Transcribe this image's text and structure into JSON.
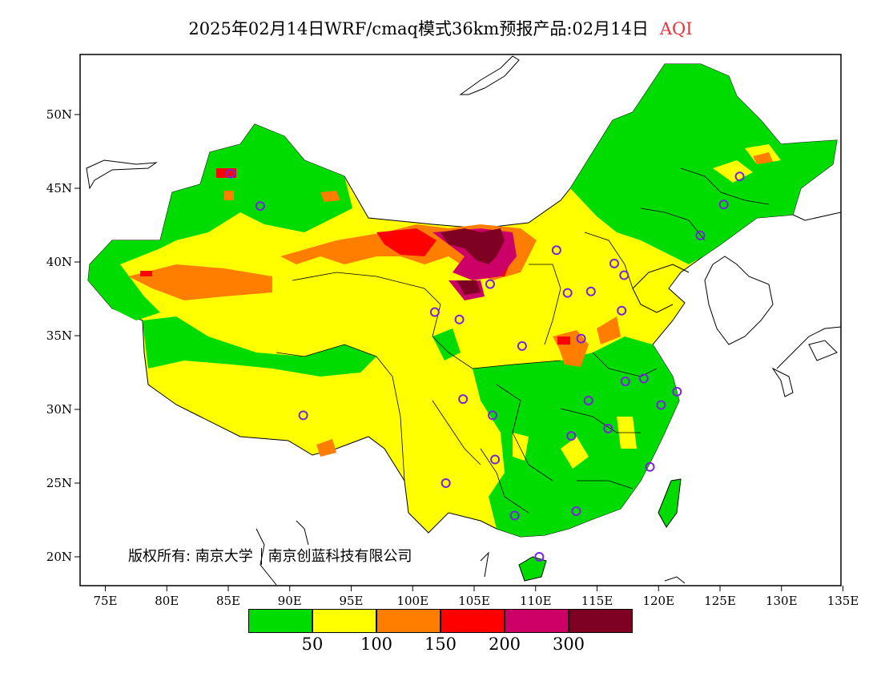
{
  "header": {
    "title": "2025年02月14日WRF/cmaq模式36km预报产品:02月14日",
    "product": "AQI"
  },
  "map": {
    "x_ticks": [
      "75E",
      "80E",
      "85E",
      "90E",
      "95E",
      "100E",
      "105E",
      "110E",
      "115E",
      "120E",
      "125E",
      "130E",
      "135E"
    ],
    "y_ticks": [
      "20N",
      "25N",
      "30N",
      "35N",
      "40N",
      "45N",
      "50N"
    ]
  },
  "legend": {
    "colors": [
      "#00dc00",
      "#ffff00",
      "#ff7e00",
      "#ff0000",
      "#cc0066",
      "#7e0023"
    ],
    "labels": [
      "50",
      "100",
      "150",
      "200",
      "300"
    ]
  },
  "footer": {
    "copyright": "版权所有: 南京大学",
    "company": "南京创蓝科技有限公司"
  },
  "stations": [
    {
      "lon": 85.2,
      "lat": 46.0
    },
    {
      "lon": 87.6,
      "lat": 43.8
    },
    {
      "lon": 91.1,
      "lat": 29.6
    },
    {
      "lon": 101.8,
      "lat": 36.6
    },
    {
      "lon": 103.8,
      "lat": 36.1
    },
    {
      "lon": 106.3,
      "lat": 38.5
    },
    {
      "lon": 111.7,
      "lat": 40.8
    },
    {
      "lon": 112.6,
      "lat": 37.9
    },
    {
      "lon": 114.5,
      "lat": 38.0
    },
    {
      "lon": 116.4,
      "lat": 39.9
    },
    {
      "lon": 117.2,
      "lat": 39.1
    },
    {
      "lon": 117.0,
      "lat": 36.7
    },
    {
      "lon": 113.7,
      "lat": 34.8
    },
    {
      "lon": 108.9,
      "lat": 34.3
    },
    {
      "lon": 104.1,
      "lat": 30.7
    },
    {
      "lon": 106.5,
      "lat": 29.6
    },
    {
      "lon": 106.7,
      "lat": 26.6
    },
    {
      "lon": 102.7,
      "lat": 25.0
    },
    {
      "lon": 108.3,
      "lat": 22.8
    },
    {
      "lon": 113.3,
      "lat": 23.1
    },
    {
      "lon": 110.3,
      "lat": 20.0
    },
    {
      "lon": 112.9,
      "lat": 28.2
    },
    {
      "lon": 114.3,
      "lat": 30.6
    },
    {
      "lon": 115.9,
      "lat": 28.7
    },
    {
      "lon": 117.3,
      "lat": 31.9
    },
    {
      "lon": 118.8,
      "lat": 32.1
    },
    {
      "lon": 120.2,
      "lat": 30.3
    },
    {
      "lon": 121.5,
      "lat": 31.2
    },
    {
      "lon": 119.3,
      "lat": 26.1
    },
    {
      "lon": 123.4,
      "lat": 41.8
    },
    {
      "lon": 125.3,
      "lat": 43.9
    },
    {
      "lon": 126.6,
      "lat": 45.8
    }
  ]
}
